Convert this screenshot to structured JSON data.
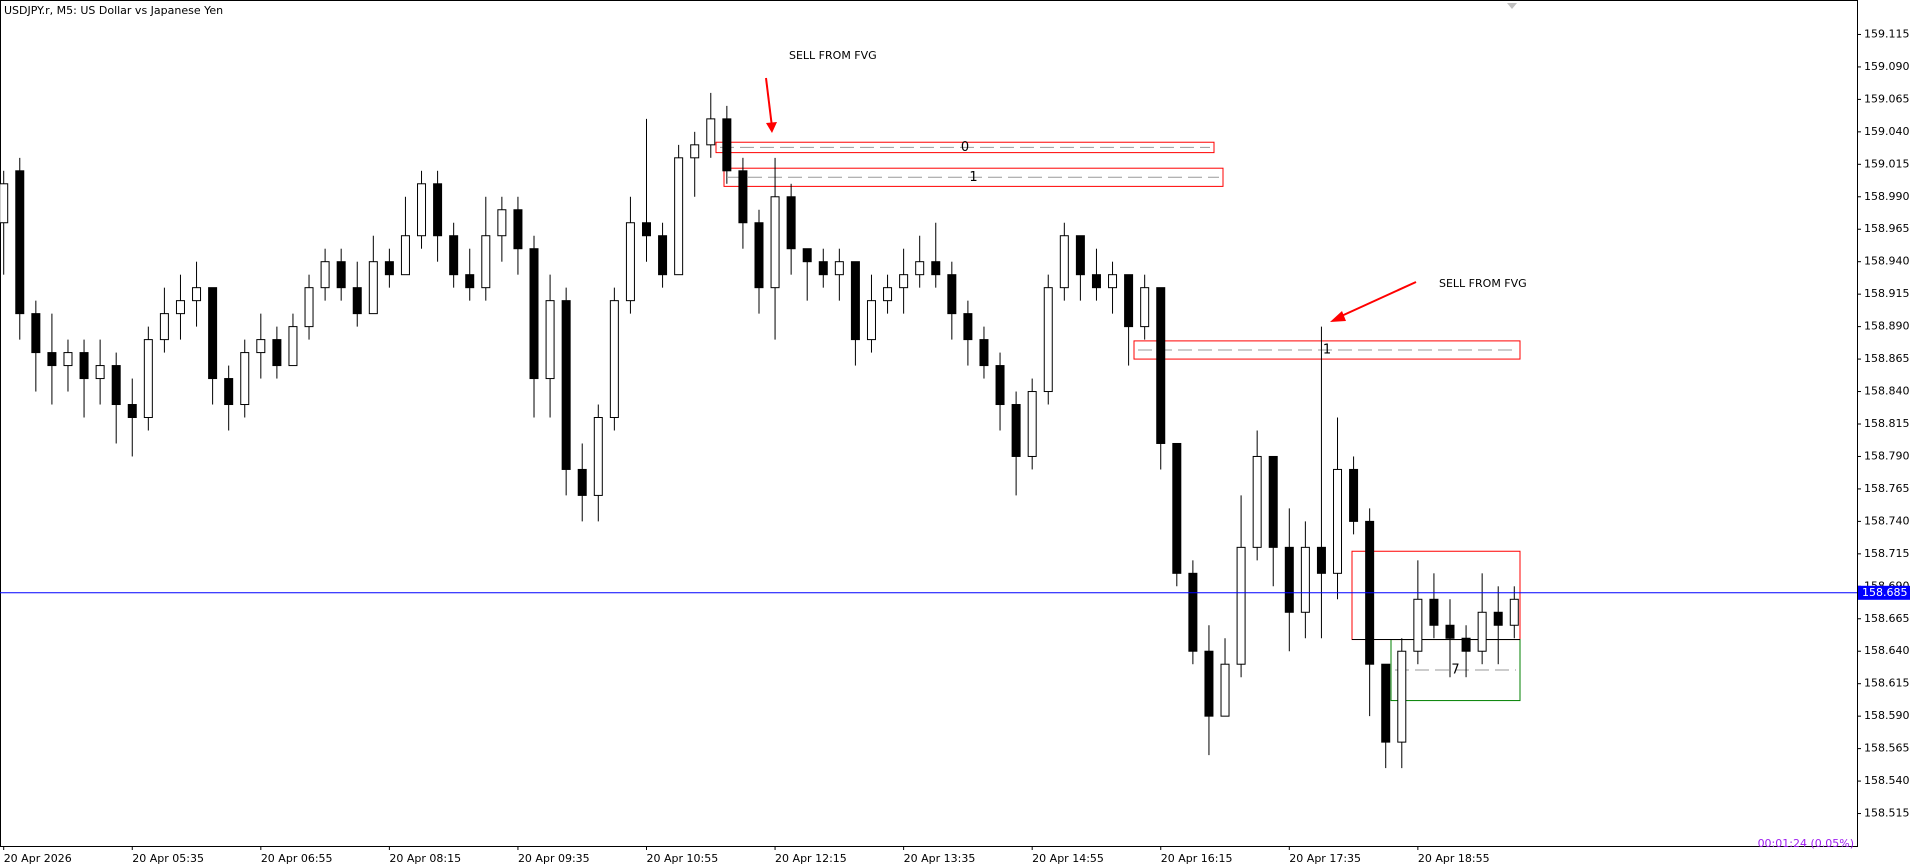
{
  "chart_data": {
    "type": "candlestick",
    "title": "USDJPY.r, M5:  US Dollar vs Japanese Yen",
    "categories": [
      "20 Apr 2026",
      null,
      null,
      null,
      null,
      null,
      null,
      null,
      "20 Apr 05:35",
      null,
      null,
      null,
      null,
      null,
      null,
      null,
      "20 Apr 06:55",
      null,
      null,
      null,
      null,
      null,
      null,
      null,
      "20 Apr 08:15",
      null,
      null,
      null,
      null,
      null,
      null,
      null,
      "20 Apr 09:35",
      null,
      null,
      null,
      null,
      null,
      null,
      null,
      "20 Apr 10:55",
      null,
      null,
      null,
      null,
      null,
      null,
      null,
      "20 Apr 12:15",
      null,
      null,
      null,
      null,
      null,
      null,
      null,
      "20 Apr 13:35",
      null,
      null,
      null,
      null,
      null,
      null,
      null,
      "20 Apr 14:55",
      null,
      null,
      null,
      null,
      null,
      null,
      null,
      "20 Apr 16:15",
      null,
      null,
      null,
      null,
      null,
      null,
      null,
      "20 Apr 17:35",
      null,
      null,
      null,
      null,
      null,
      null,
      null,
      "20 Apr 18:55",
      null,
      null,
      null,
      null,
      null,
      null
    ],
    "open": [
      158.97,
      159.01,
      158.9,
      158.87,
      158.86,
      158.87,
      158.85,
      158.86,
      158.83,
      158.82,
      158.88,
      158.9,
      158.91,
      158.92,
      158.85,
      158.83,
      158.87,
      158.88,
      158.86,
      158.89,
      158.92,
      158.94,
      158.92,
      158.9,
      158.94,
      158.93,
      158.96,
      159.0,
      158.96,
      158.93,
      158.92,
      158.96,
      158.98,
      158.95,
      158.85,
      158.91,
      158.78,
      158.76,
      158.82,
      158.91,
      158.97,
      158.96,
      158.93,
      159.02,
      159.03,
      159.05,
      159.01,
      158.97,
      158.92,
      158.99,
      158.95,
      158.94,
      158.93,
      158.94,
      158.88,
      158.91,
      158.92,
      158.93,
      158.94,
      158.93,
      158.9,
      158.88,
      158.86,
      158.83,
      158.79,
      158.84,
      158.92,
      158.96,
      158.93,
      158.92,
      158.93,
      158.89,
      158.92,
      158.8,
      158.7,
      158.64,
      158.59,
      158.63,
      158.72,
      158.79,
      158.72,
      158.67,
      158.72,
      158.7,
      158.78,
      158.74,
      158.63,
      158.57,
      158.64,
      158.68,
      158.66,
      158.65,
      158.64,
      158.67,
      158.66
    ],
    "high": [
      159.01,
      159.02,
      158.91,
      158.9,
      158.88,
      158.88,
      158.88,
      158.87,
      158.85,
      158.89,
      158.92,
      158.93,
      158.94,
      158.92,
      158.86,
      158.88,
      158.9,
      158.89,
      158.9,
      158.93,
      158.95,
      158.95,
      158.94,
      158.96,
      158.95,
      158.99,
      159.01,
      159.01,
      158.97,
      158.95,
      158.99,
      158.99,
      158.99,
      158.96,
      158.93,
      158.92,
      158.8,
      158.83,
      158.92,
      158.99,
      159.05,
      158.97,
      159.03,
      159.04,
      159.07,
      159.06,
      159.02,
      158.98,
      159.02,
      159.0,
      158.95,
      158.95,
      158.95,
      158.94,
      158.93,
      158.93,
      158.95,
      158.96,
      158.97,
      158.94,
      158.91,
      158.89,
      158.87,
      158.84,
      158.85,
      158.93,
      158.97,
      158.96,
      158.95,
      158.94,
      158.93,
      158.93,
      158.92,
      158.8,
      158.71,
      158.66,
      158.65,
      158.76,
      158.81,
      158.79,
      158.75,
      158.74,
      158.89,
      158.82,
      158.79,
      158.75,
      158.63,
      158.65,
      158.71,
      158.7,
      158.68,
      158.66,
      158.7,
      158.69,
      158.69
    ],
    "low": [
      158.93,
      158.88,
      158.84,
      158.83,
      158.84,
      158.82,
      158.83,
      158.8,
      158.79,
      158.81,
      158.87,
      158.88,
      158.89,
      158.83,
      158.81,
      158.82,
      158.85,
      158.85,
      158.86,
      158.88,
      158.91,
      158.91,
      158.89,
      158.9,
      158.92,
      158.93,
      158.95,
      158.94,
      158.92,
      158.91,
      158.91,
      158.94,
      158.93,
      158.82,
      158.82,
      158.76,
      158.74,
      158.74,
      158.81,
      158.9,
      158.94,
      158.92,
      158.93,
      158.99,
      159.02,
      159.0,
      158.95,
      158.9,
      158.88,
      158.93,
      158.91,
      158.92,
      158.91,
      158.86,
      158.87,
      158.9,
      158.9,
      158.92,
      158.92,
      158.88,
      158.86,
      158.85,
      158.81,
      158.76,
      158.78,
      158.83,
      158.91,
      158.91,
      158.91,
      158.9,
      158.86,
      158.88,
      158.78,
      158.69,
      158.63,
      158.56,
      158.59,
      158.62,
      158.71,
      158.69,
      158.64,
      158.65,
      158.65,
      158.68,
      158.73,
      158.59,
      158.55,
      158.55,
      158.63,
      158.65,
      158.62,
      158.62,
      158.63,
      158.63,
      158.65
    ],
    "close": [
      159.0,
      158.9,
      158.87,
      158.86,
      158.87,
      158.85,
      158.86,
      158.83,
      158.82,
      158.88,
      158.9,
      158.91,
      158.92,
      158.85,
      158.83,
      158.87,
      158.88,
      158.86,
      158.89,
      158.92,
      158.94,
      158.92,
      158.9,
      158.94,
      158.93,
      158.96,
      159.0,
      158.96,
      158.93,
      158.92,
      158.96,
      158.98,
      158.95,
      158.85,
      158.91,
      158.78,
      158.76,
      158.82,
      158.91,
      158.97,
      158.96,
      158.93,
      159.02,
      159.03,
      159.05,
      159.01,
      158.97,
      158.92,
      158.99,
      158.95,
      158.94,
      158.93,
      158.94,
      158.88,
      158.91,
      158.92,
      158.93,
      158.94,
      158.93,
      158.9,
      158.88,
      158.86,
      158.83,
      158.79,
      158.84,
      158.92,
      158.96,
      158.93,
      158.92,
      158.93,
      158.89,
      158.92,
      158.8,
      158.7,
      158.64,
      158.59,
      158.63,
      158.72,
      158.79,
      158.72,
      158.67,
      158.72,
      158.7,
      158.78,
      158.74,
      158.63,
      158.57,
      158.64,
      158.68,
      158.66,
      158.65,
      158.64,
      158.67,
      158.66,
      158.68
    ],
    "ylim": [
      158.49,
      159.14
    ],
    "yticks": [
      159.115,
      {
        "value": 159.09,
        "label": "159.090"
      },
      159.065,
      {
        "value": 159.04,
        "label": "159.040"
      },
      159.015,
      {
        "value": 158.99,
        "label": "158.990"
      },
      158.965,
      {
        "value": 158.94,
        "label": "158.940"
      },
      158.915,
      {
        "value": 158.89,
        "label": "158.890"
      },
      158.865,
      {
        "value": 158.84,
        "label": "158.840"
      },
      158.815,
      {
        "value": 158.79,
        "label": "158.790"
      },
      158.765,
      {
        "value": 158.74,
        "label": "158.740"
      },
      158.715,
      {
        "value": 158.69,
        "label": "158.690"
      },
      158.665,
      {
        "value": 158.64,
        "label": "158.640"
      },
      158.615,
      {
        "value": 158.59,
        "label": "158.590"
      },
      158.565,
      {
        "value": 158.54,
        "label": "158.540"
      },
      158.515
    ],
    "last_price": 158.685,
    "last_price_color": "#0000ff",
    "zones": [
      {
        "label": "0",
        "low": 159.024,
        "high": 159.032,
        "color": "#ff0000"
      },
      {
        "label": "1",
        "low": 158.998,
        "high": 159.012,
        "color": "#ff0000"
      },
      {
        "label": "1",
        "low": 158.865,
        "high": 158.879,
        "color": "#ff0000"
      },
      {
        "low": 158.649,
        "high": 158.717,
        "color": "#ff0000"
      },
      {
        "label": "7",
        "low": 158.602,
        "high": 158.649,
        "color": "#008000"
      }
    ],
    "annotations": [
      "SELL FROM FVG",
      "SELL FROM FVG"
    ],
    "countdown": "00:01:24 (0.05%)"
  }
}
